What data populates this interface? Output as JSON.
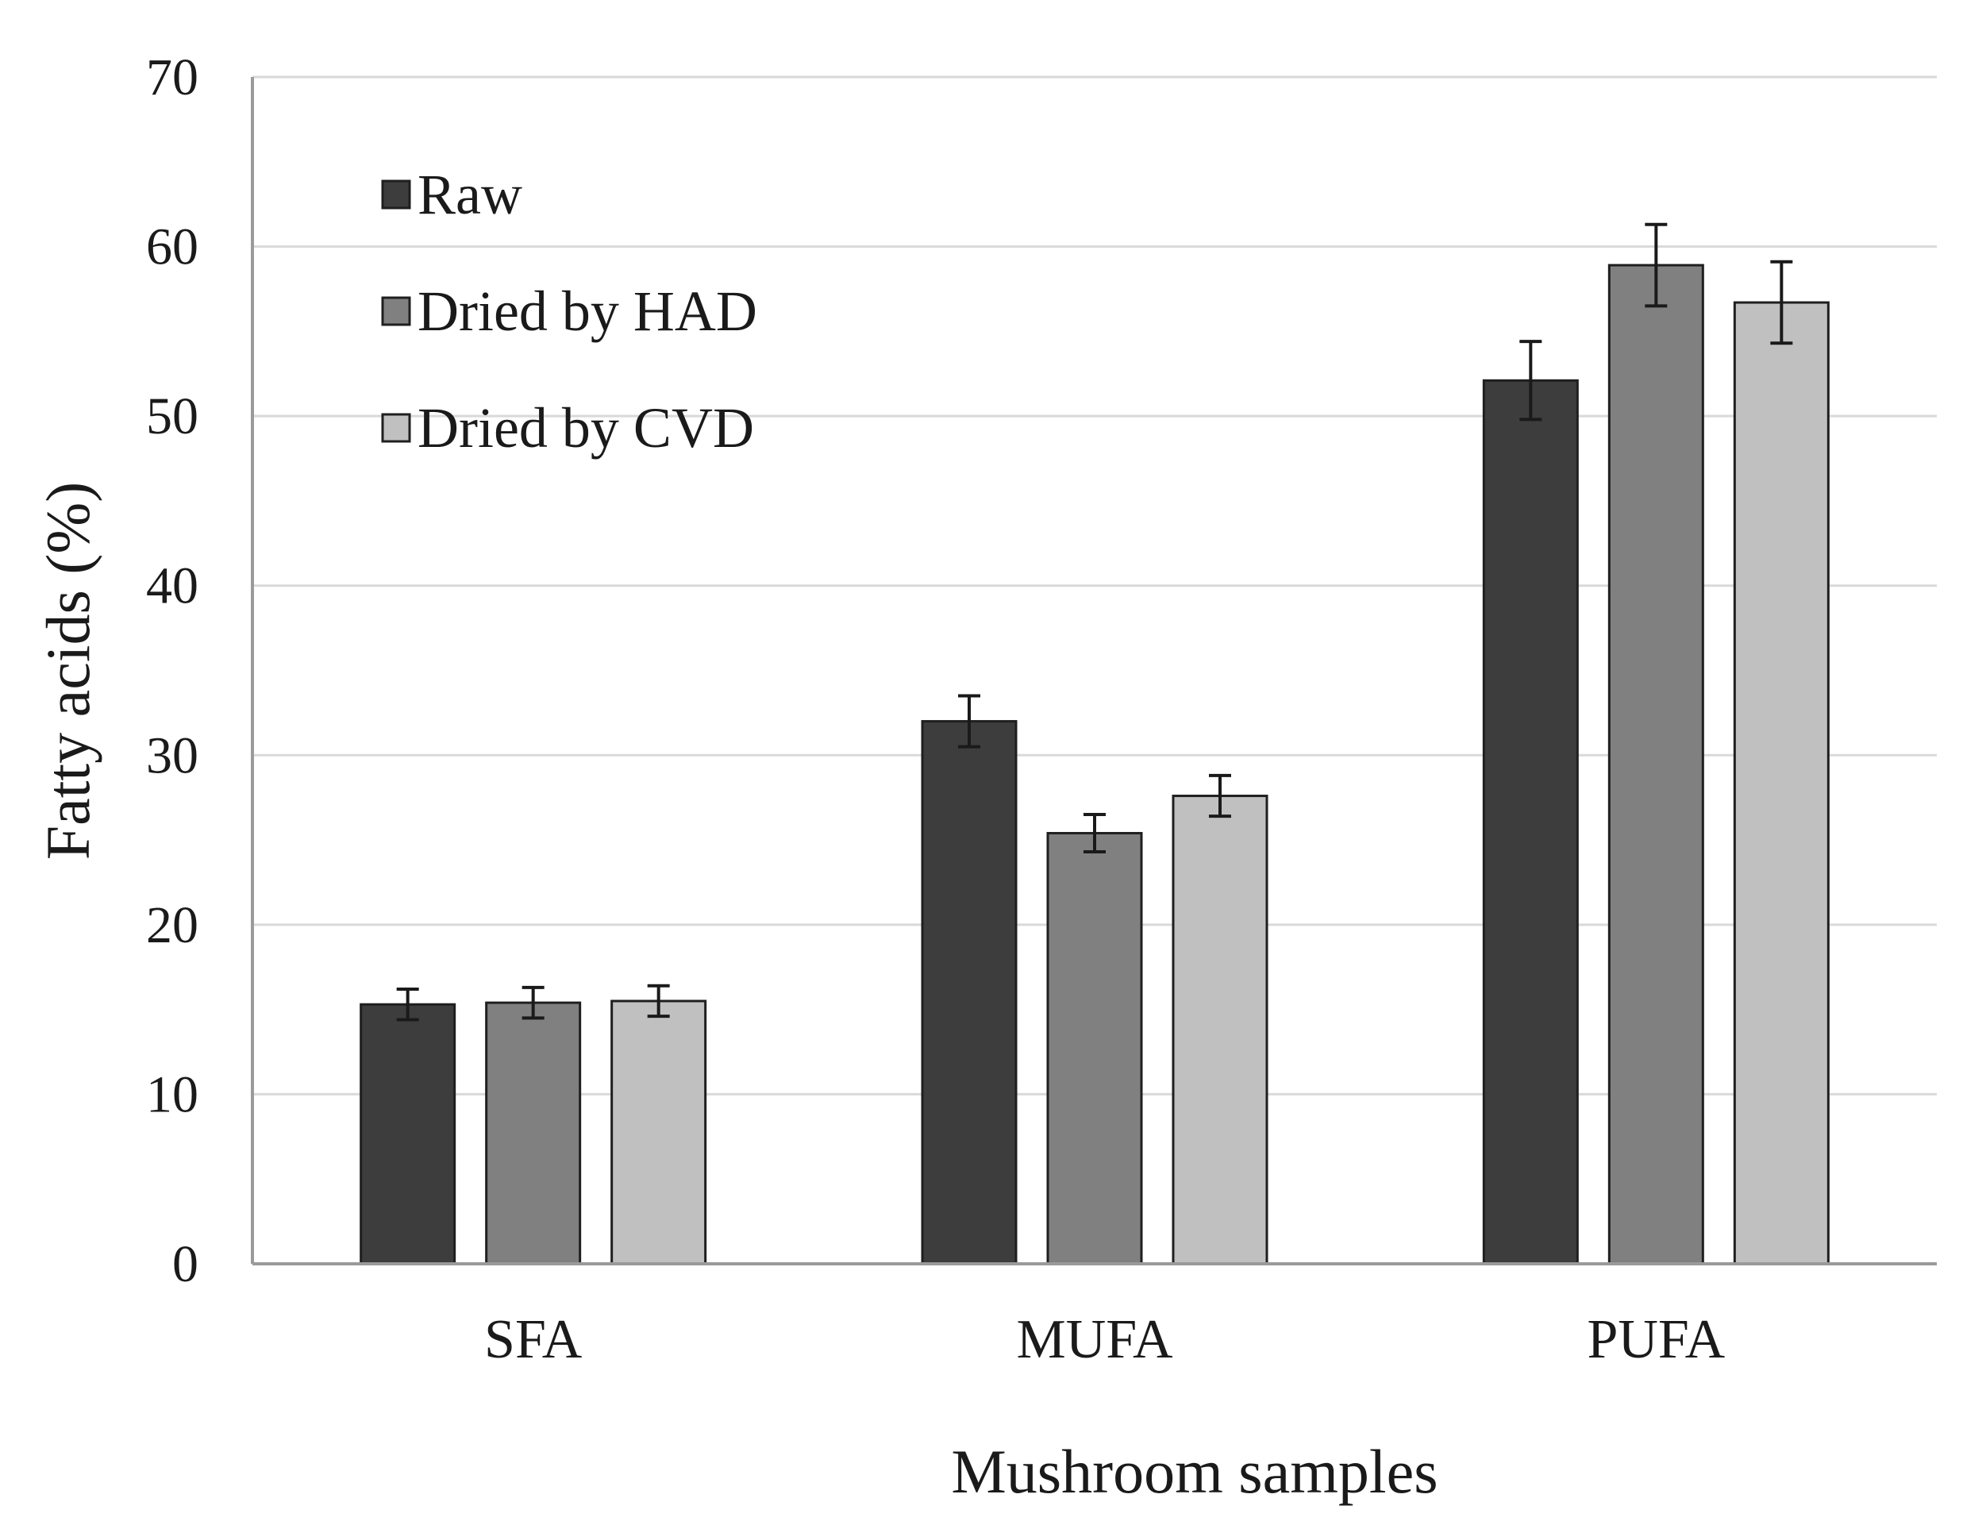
{
  "chart_data": {
    "type": "bar",
    "title": "",
    "xlabel": "Mushroom samples",
    "ylabel": "Fatty acids (%)",
    "ylim": [
      0,
      70
    ],
    "yticks": [
      "0",
      "10",
      "20",
      "30",
      "40",
      "50",
      "60",
      "70"
    ],
    "grid": true,
    "legend_position": "top-left",
    "categories": [
      "SFA",
      "MUFA",
      "PUFA"
    ],
    "series": [
      {
        "name": "Raw",
        "color": "#3d3d3d",
        "values": [
          15.3,
          32.0,
          52.1
        ],
        "errors": [
          0.9,
          1.5,
          2.3
        ]
      },
      {
        "name": "Dried by HAD",
        "color": "#808080",
        "values": [
          15.4,
          25.4,
          58.9
        ],
        "errors": [
          0.9,
          1.1,
          2.4
        ]
      },
      {
        "name": "Dried by CVD",
        "color": "#c0c0c0",
        "values": [
          15.5,
          27.6,
          56.7
        ],
        "errors": [
          0.9,
          1.2,
          2.4
        ]
      }
    ]
  }
}
